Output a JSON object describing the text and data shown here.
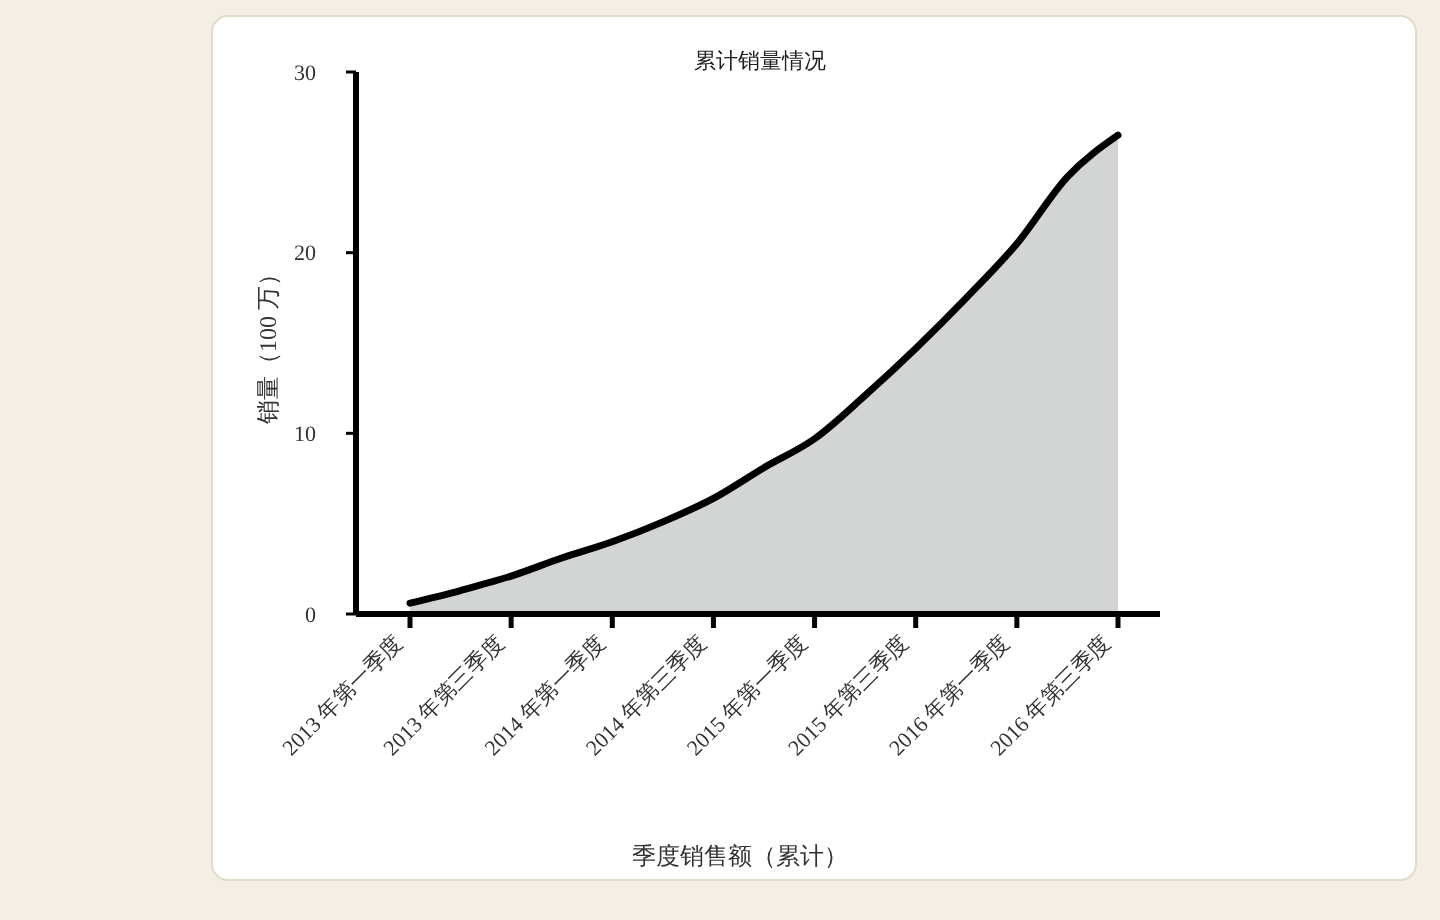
{
  "chart_data": {
    "type": "area",
    "title": "累计销量情况",
    "xlabel": "季度销售额（累计）",
    "ylabel": "销量（100 万）",
    "categories": [
      "2013 年第一季度",
      null,
      "2013 年第三季度",
      null,
      "2014 年第一季度",
      null,
      "2014 年第三季度",
      null,
      "2015 年第一季度",
      null,
      "2015 年第三季度",
      null,
      "2016 年第一季度",
      null,
      "2016 年第三季度"
    ],
    "series": [
      {
        "color": "#d3d5d5",
        "values": [
          0.6,
          1.3,
          2.1,
          3.1,
          4.0,
          5.1,
          6.4,
          8.1,
          9.7,
          12.1,
          14.7,
          17.5,
          20.5,
          24.2,
          26.5
        ]
      }
    ],
    "ylim": [
      0,
      30
    ],
    "yticks": [
      0,
      10,
      20,
      30
    ]
  }
}
